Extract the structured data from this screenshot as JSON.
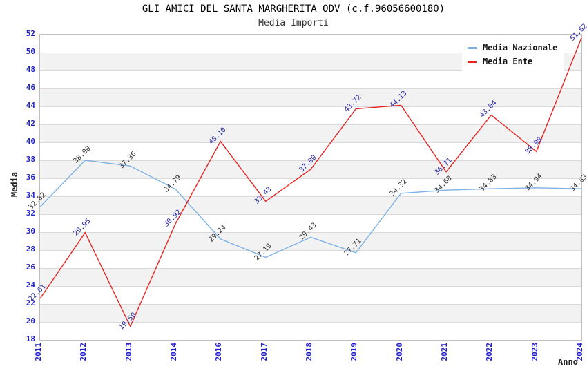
{
  "title": "GLI AMICI DEL SANTA MARGHERITA ODV (c.f.96056600180)",
  "subtitle": "Media Importi",
  "axes": {
    "y_label": "Media",
    "x_label": "Anno",
    "y_ticks": [
      52,
      50,
      48,
      46,
      44,
      42,
      40,
      38,
      36,
      34,
      32,
      30,
      28,
      26,
      24,
      22,
      20,
      18
    ],
    "x_ticks": [
      "2011",
      "2012",
      "2013",
      "2014",
      "2016",
      "2017",
      "2018",
      "2019",
      "2020",
      "2021",
      "2022",
      "2023",
      "2024"
    ]
  },
  "legend": {
    "position": "top-right",
    "items": [
      {
        "label": "Media Nazionale",
        "color": "#7cb1e6"
      },
      {
        "label": "Media Ente",
        "color": "#e62420"
      }
    ]
  },
  "colors": {
    "tick_label_blue": "#2222cc",
    "band_gray": "#f2f2f2",
    "gridline": "#d9d9d9",
    "plot_border": "#bfbfbf"
  },
  "chart_data": {
    "type": "line",
    "title": "GLI AMICI DEL SANTA MARGHERITA ODV (c.f.96056600180)",
    "subtitle": "Media Importi",
    "xlabel": "Anno",
    "ylabel": "Media",
    "x": [
      "2011",
      "2012",
      "2013",
      "2014",
      "2016",
      "2017",
      "2018",
      "2019",
      "2020",
      "2021",
      "2022",
      "2023",
      "2024"
    ],
    "ylim": [
      18,
      52
    ],
    "y_tick_step": 2,
    "grid": "horizontal alternating bands every 2 units",
    "legend_position": "top-right",
    "point_labels": "values shown rotated 45 degrees at each point",
    "series": [
      {
        "name": "Media Nazionale",
        "color": "#7cb1e6",
        "label_color": "#333333",
        "values": [
          32.82,
          38.0,
          37.36,
          34.79,
          29.24,
          27.19,
          29.43,
          27.71,
          34.32,
          34.68,
          34.83,
          34.94,
          34.83
        ]
      },
      {
        "name": "Media Ente",
        "color": "#e62420",
        "label_color": "#2929aa",
        "values": [
          22.61,
          29.95,
          19.5,
          30.92,
          40.1,
          33.43,
          37.0,
          43.72,
          44.13,
          36.71,
          43.04,
          38.98,
          51.62
        ]
      }
    ]
  }
}
